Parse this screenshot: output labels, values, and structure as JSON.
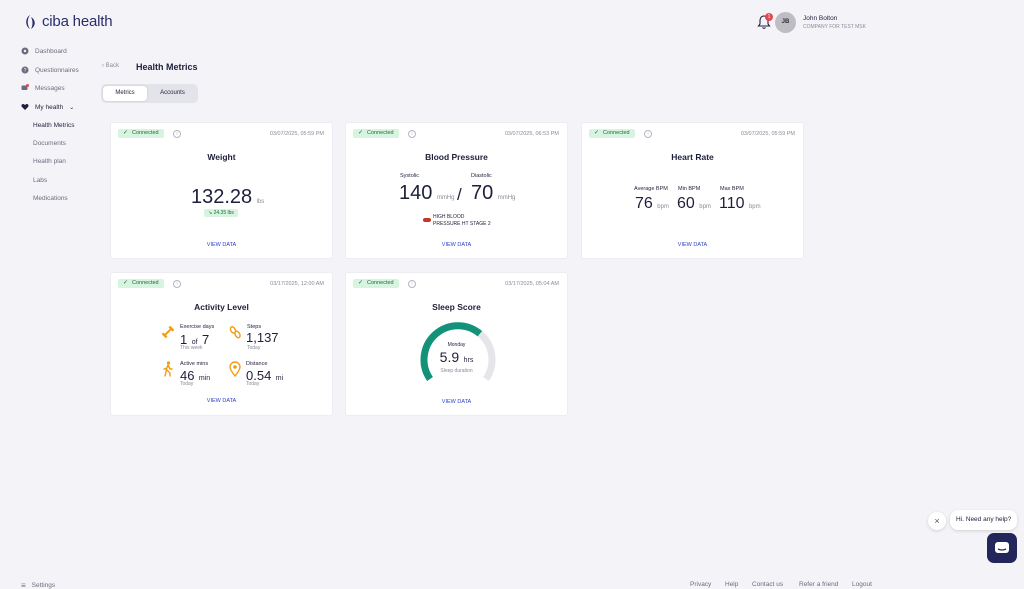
{
  "header": {
    "logo_text": "ciba health",
    "notifications": "1",
    "avatar_initials": "JB",
    "user_name": "John Bolton",
    "company": "COMPANY FOR TEST MSK"
  },
  "sidebar": {
    "items": [
      {
        "label": "Dashboard",
        "icon": "dashboard-icon"
      },
      {
        "label": "Questionnaires",
        "icon": "question-icon"
      },
      {
        "label": "Messages",
        "icon": "chat-icon",
        "badge": "1"
      },
      {
        "label": "My health",
        "icon": "heart-icon"
      }
    ],
    "subitems": [
      "Health Metrics",
      "Documents",
      "Health plan",
      "Labs",
      "Medications"
    ],
    "settings": "Settings"
  },
  "page": {
    "back": "Back",
    "title": "Health Metrics",
    "tabs": [
      "Metrics",
      "Accounts"
    ]
  },
  "cards": {
    "connected": "Connected",
    "view": "VIEW DATA",
    "weight": {
      "ts": "03/07/2025, 05:59 PM",
      "title": "Weight",
      "value": "132.28",
      "unit": "lbs",
      "delta": "24.35 lbs"
    },
    "bp": {
      "ts": "03/07/2025, 06:53 PM",
      "title": "Blood Pressure",
      "sys_label": "Systolic",
      "dia_label": "Diastolic",
      "sys": "140",
      "dia": "70",
      "unit": "mmHg",
      "status1": "HIGH BLOOD",
      "status2": "PRESSURE HT STAGE 2"
    },
    "hr": {
      "ts": "03/07/2025, 05:59 PM",
      "title": "Heart Rate",
      "avg_label": "Average BPM",
      "min_label": "Min BPM",
      "max_label": "Max BPM",
      "avg": "76",
      "min": "60",
      "max": "110",
      "unit": "bpm"
    },
    "activity": {
      "ts": "03/17/2025, 12:00 AM",
      "title": "Activity Level",
      "ex_label": "Exercise days",
      "ex_val": "1",
      "ex_of": "of",
      "ex_total": "7",
      "ex_sub": "This week",
      "steps_label": "Steps",
      "steps_val": "1,137",
      "steps_sub": "Today",
      "active_label": "Active mins",
      "active_val": "46",
      "active_unit": "min",
      "active_sub": "Today",
      "dist_label": "Distance",
      "dist_val": "0.54",
      "dist_unit": "mi",
      "dist_sub": "Today"
    },
    "sleep": {
      "ts": "03/17/2025, 05:04 AM",
      "title": "Sleep Score",
      "day": "Monday",
      "value": "5.9",
      "unit": "hrs",
      "sub": "Sleep duration",
      "progress": 0.66
    }
  },
  "footer": {
    "links": [
      "Privacy",
      "Help",
      "Contact us",
      "Refer a friend",
      "Logout"
    ]
  },
  "chat": {
    "prompt": "Hi. Need any help?"
  },
  "colors": {
    "accent": "#2b3fc7",
    "connected_bg": "#d6f4df",
    "sleep_arc": "#13927a",
    "alert": "#c0392b"
  }
}
